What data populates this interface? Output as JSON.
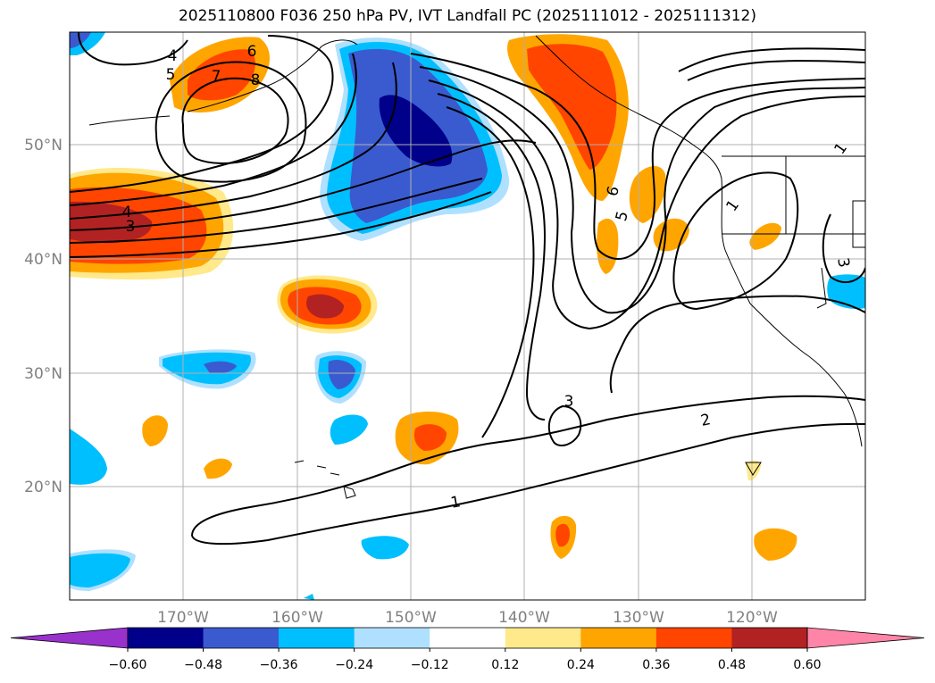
{
  "title": "2025110800 F036 250 hPa PV, IVT Landfall PC (2025111012 - 2025111312)",
  "lat_labels": [
    "50°N",
    "40°N",
    "30°N",
    "20°N"
  ],
  "lon_labels": [
    "170°W",
    "160°W",
    "150°W",
    "140°W",
    "130°W",
    "120°W"
  ],
  "colorbar": {
    "ticks": [
      "−0.60",
      "−0.48",
      "−0.36",
      "−0.24",
      "−0.12",
      "0.12",
      "0.24",
      "0.36",
      "0.48",
      "0.60"
    ],
    "colors": [
      "#9932cc",
      "#00008b",
      "#3a5bd0",
      "#00bfff",
      "#b0e0ff",
      "#ffffff",
      "#ffe98a",
      "#ffa500",
      "#ff4500",
      "#b22222",
      "#ff85a8"
    ],
    "extend": "both"
  },
  "contour_labels": {
    "c4a": "4",
    "c5a": "5",
    "c6a": "6",
    "c7a": "7",
    "c8a": "8",
    "c4b": "4",
    "c3b": "3",
    "c6b": "6",
    "c5b": "5",
    "c1a": "1",
    "c1b": "1",
    "c3c": "3",
    "c2a": "2",
    "c1c": "1",
    "c3d": "3"
  },
  "colors": {
    "land": "#ffffff",
    "grid": "#b0b0b0",
    "contour": "#000000"
  }
}
